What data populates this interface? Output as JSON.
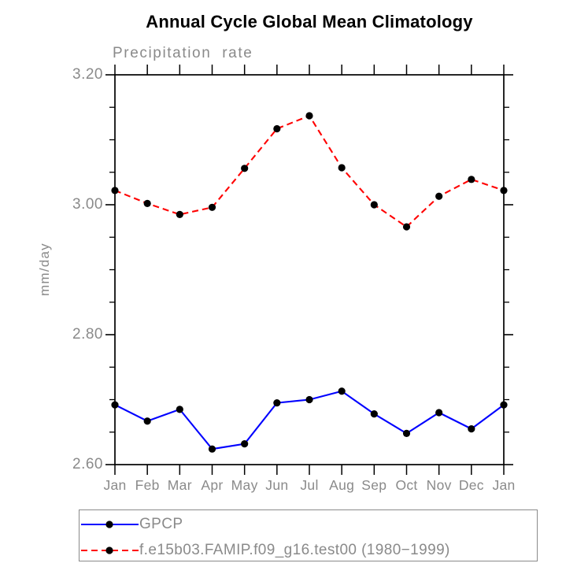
{
  "chart_data": {
    "type": "line",
    "title": "Annual Cycle Global Mean Climatology",
    "subtitle": "Precipitation rate",
    "ylabel": "mm/day",
    "xlabel": "",
    "x_labels": [
      "Jan",
      "Feb",
      "Mar",
      "Apr",
      "May",
      "Jun",
      "Jul",
      "Aug",
      "Sep",
      "Oct",
      "Nov",
      "Dec",
      "Jan"
    ],
    "ylim": [
      2.6,
      3.2
    ],
    "y_major_ticks": [
      2.6,
      2.8,
      3.0,
      3.2
    ],
    "y_tick_labels": [
      "2.60",
      "2.80",
      "3.00",
      "3.20"
    ],
    "y_minor_step": 0.05,
    "grid": false,
    "legend_position": "bottom-left",
    "axis_color": "#000000",
    "label_color": "#8a8a8a",
    "marker_color": "#000000",
    "series": [
      {
        "name": "GPCP",
        "color": "#0000ff",
        "line_style": "solid",
        "marker": "filled-circle",
        "values": [
          2.692,
          2.667,
          2.685,
          2.624,
          2.632,
          2.695,
          2.7,
          2.713,
          2.678,
          2.648,
          2.68,
          2.655,
          2.692
        ]
      },
      {
        "name": "f.e15b03.FAMIP.f09_g16.test00 (1980−1999)",
        "color": "#ff0000",
        "line_style": "dashed",
        "marker": "filled-circle",
        "values": [
          3.022,
          3.002,
          2.985,
          2.996,
          3.056,
          3.117,
          3.137,
          3.057,
          3.0,
          2.966,
          3.013,
          3.039,
          3.022
        ]
      }
    ]
  }
}
